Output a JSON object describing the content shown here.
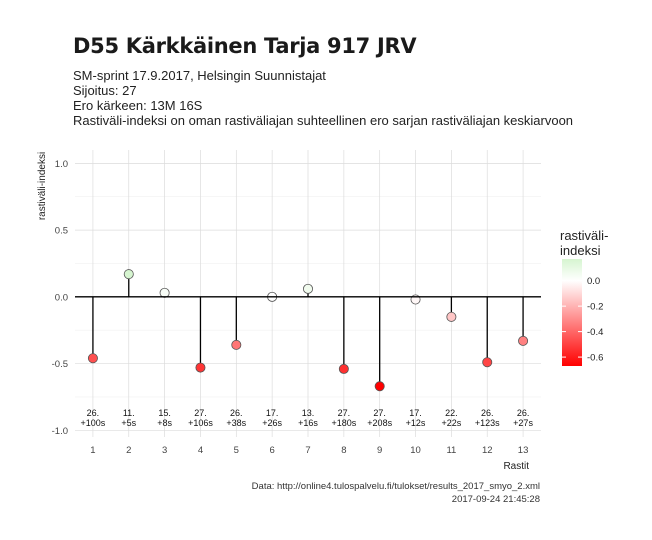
{
  "header": {
    "title": "D55 Kärkkäinen Tarja 917 JRV",
    "subtitle_lines": [
      "SM-sprint 17.9.2017, Helsingin Suunnistajat",
      "Sijoitus: 27",
      "Ero kärkeen: 13M 16S",
      "Rastiväli-indeksi on oman rastiväliajan suhteellinen ero sarjan rastiväliajan keskiarvoon"
    ]
  },
  "footer": {
    "source": "Data: http://online4.tulospalvelu.fi/tulokset/results_2017_smyo_2.xml",
    "timestamp": "2017-09-24 21:45:28"
  },
  "chart_data": {
    "type": "scatter",
    "xlabel": "Rastit",
    "ylabel": "rastiväli-indeksi",
    "ylim": [
      -1.0,
      1.0
    ],
    "yticks": [
      1.0,
      0.5,
      0.0,
      -0.5,
      -1.0
    ],
    "ytick_labels": [
      "1.0",
      "0.5",
      "0.0",
      "-0.5",
      "-1.0"
    ],
    "xticks": [
      1,
      2,
      3,
      4,
      5,
      6,
      7,
      8,
      9,
      10,
      11,
      12,
      13
    ],
    "grid": true,
    "points": [
      {
        "x": 1,
        "y": -0.46,
        "rank": "26.",
        "diff": "+100s"
      },
      {
        "x": 2,
        "y": 0.17,
        "rank": "11.",
        "diff": "+5s"
      },
      {
        "x": 3,
        "y": 0.03,
        "rank": "15.",
        "diff": "+8s"
      },
      {
        "x": 4,
        "y": -0.53,
        "rank": "27.",
        "diff": "+106s"
      },
      {
        "x": 5,
        "y": -0.36,
        "rank": "26.",
        "diff": "+38s"
      },
      {
        "x": 6,
        "y": 0.0,
        "rank": "17.",
        "diff": "+26s"
      },
      {
        "x": 7,
        "y": 0.06,
        "rank": "13.",
        "diff": "+16s"
      },
      {
        "x": 8,
        "y": -0.54,
        "rank": "27.",
        "diff": "+180s"
      },
      {
        "x": 9,
        "y": -0.67,
        "rank": "27.",
        "diff": "+208s"
      },
      {
        "x": 10,
        "y": -0.02,
        "rank": "17.",
        "diff": "+12s"
      },
      {
        "x": 11,
        "y": -0.15,
        "rank": "22.",
        "diff": "+22s"
      },
      {
        "x": 12,
        "y": -0.49,
        "rank": "26.",
        "diff": "+123s"
      },
      {
        "x": 13,
        "y": -0.33,
        "rank": "26.",
        "diff": "+27s"
      }
    ],
    "legend": {
      "title_lines": [
        "rastiväli-",
        "indeksi"
      ],
      "position": "right",
      "ticks": [
        0.0,
        -0.2,
        -0.4,
        -0.6
      ],
      "tick_labels": [
        "0.0",
        "-0.2",
        "-0.4",
        "-0.6"
      ],
      "range": [
        -0.67,
        0.17
      ],
      "colors": {
        "low": "#ff0000",
        "mid": "#ffffff",
        "high": "#d6f5d0"
      }
    }
  }
}
